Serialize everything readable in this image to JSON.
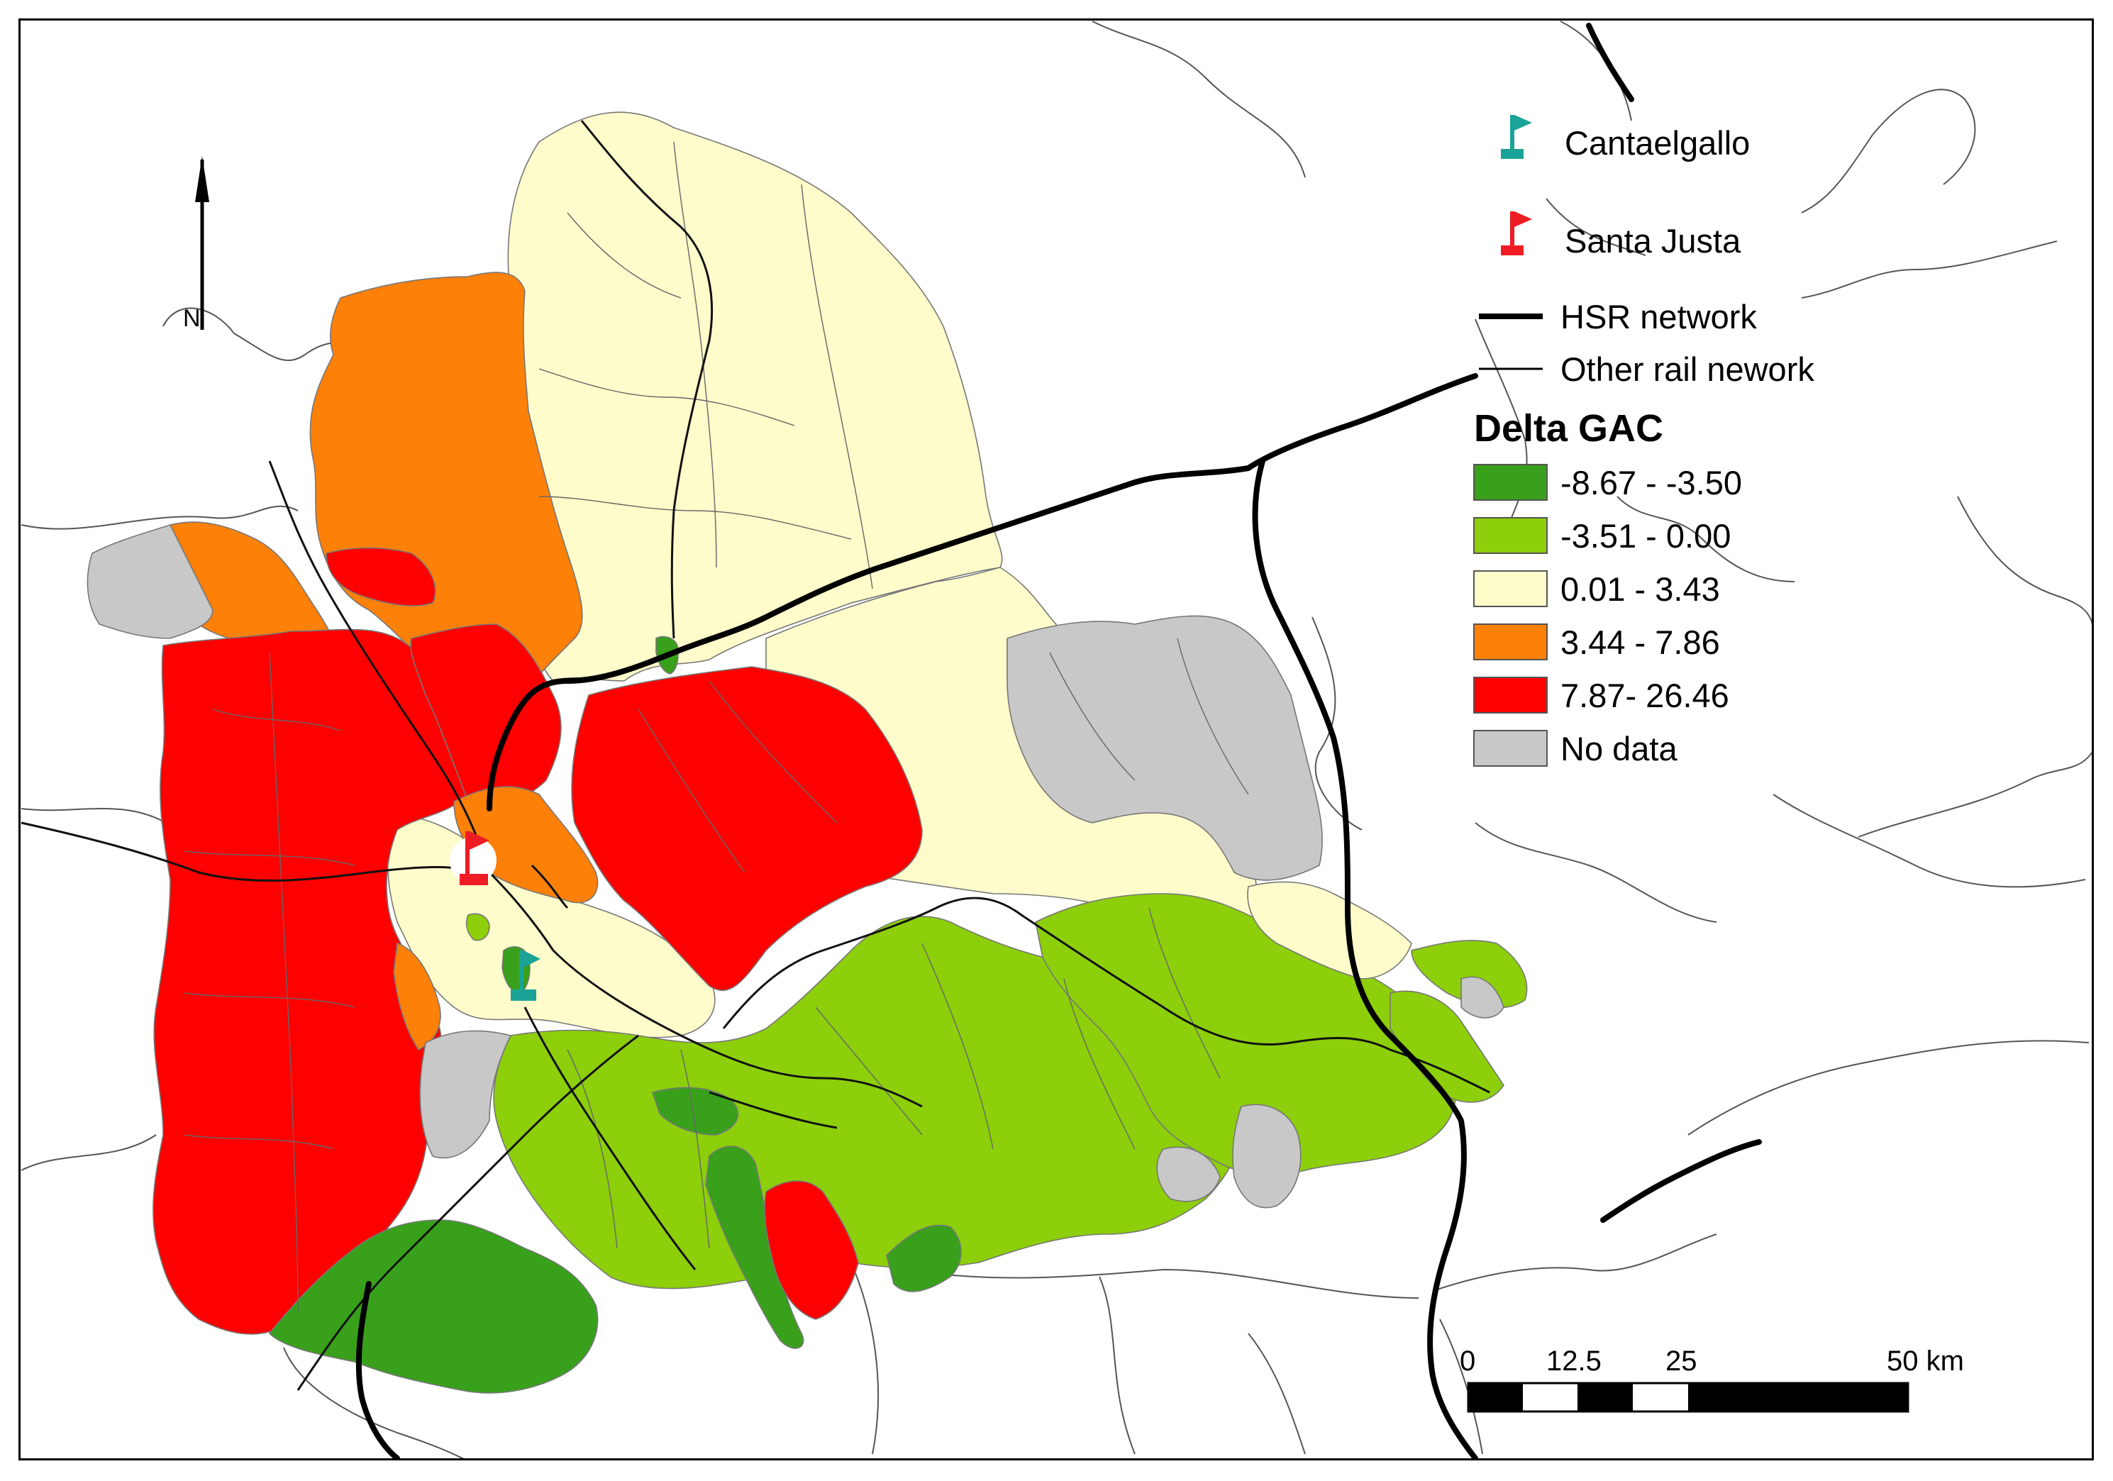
{
  "north_arrow": {
    "label": "N"
  },
  "legend": {
    "stations": [
      {
        "label": "Cantaelgallo",
        "color": "#1aa396",
        "icon": "flag-station-icon"
      },
      {
        "label": "Santa Justa",
        "color": "#ee1c24",
        "icon": "flag-station-icon"
      }
    ],
    "lines": [
      {
        "label": "HSR network"
      },
      {
        "label": "Other rail nework"
      }
    ],
    "title": "Delta GAC",
    "classes": [
      {
        "label": "-8.67 - -3.50",
        "color": "#38a01b"
      },
      {
        "label": "-3.51 - 0.00",
        "color": "#8ccf0a"
      },
      {
        "label": "0.01 - 3.43",
        "color": "#fefccb"
      },
      {
        "label": "3.44 - 7.86",
        "color": "#fd8008"
      },
      {
        "label": "7.87- 26.46",
        "color": "#fe0000"
      },
      {
        "label": "No data",
        "color": "#c8c8c8"
      }
    ]
  },
  "scale_bar": {
    "ticks": [
      "0",
      "12.5",
      "25",
      "50 km"
    ]
  }
}
